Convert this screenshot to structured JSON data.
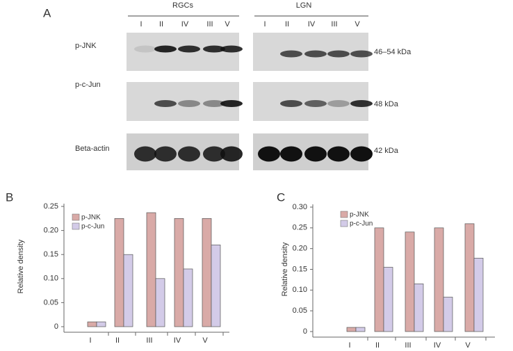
{
  "blot": {
    "panel_label": "A",
    "groups": [
      {
        "label": "RGCs",
        "lanes": [
          "I",
          "II",
          "IV",
          "III",
          "V"
        ]
      },
      {
        "label": "LGN",
        "lanes": [
          "I",
          "II",
          "IV",
          "III",
          "V"
        ]
      }
    ],
    "rows": [
      {
        "label": "p-JNK",
        "size": "46–54 kDa"
      },
      {
        "label": "p-c-Jun",
        "size": "48 kDa"
      },
      {
        "label": "Beta-actin",
        "size": "42 kDa"
      }
    ]
  },
  "chart_data": [
    {
      "type": "bar",
      "panel_label": "B",
      "ylabel": "Relative density",
      "categories": [
        "I",
        "II",
        "III",
        "IV",
        "V"
      ],
      "series": [
        {
          "name": "p-JNK",
          "color": "#d9aaa7",
          "values": [
            0.01,
            0.225,
            0.237,
            0.225,
            0.225
          ]
        },
        {
          "name": "p-c-Jun",
          "color": "#d3cbe8",
          "values": [
            0.01,
            0.15,
            0.1,
            0.12,
            0.17
          ]
        }
      ],
      "ylim": [
        0,
        0.25
      ],
      "yticks": [
        0,
        0.05,
        {
          "value": 0.1,
          "label": "0.10"
        },
        0.15,
        {
          "value": 0.2,
          "label": "0.20"
        },
        0.25
      ],
      "legend": "upper left"
    },
    {
      "type": "bar",
      "panel_label": "C",
      "ylabel": "Relative density",
      "categories": [
        "I",
        "II",
        "III",
        "IV",
        "V"
      ],
      "series": [
        {
          "name": "p-JNK",
          "color": "#d9aaa7",
          "values": [
            0.01,
            0.25,
            0.24,
            0.25,
            0.26
          ]
        },
        {
          "name": "p-c-Jun",
          "color": "#d3cbe8",
          "values": [
            0.01,
            0.155,
            0.115,
            0.083,
            0.177
          ]
        }
      ],
      "ylim": [
        0,
        0.3
      ],
      "yticks": [
        0,
        0.05,
        {
          "value": 0.1,
          "label": "0.10"
        },
        0.15,
        {
          "value": 0.2,
          "label": "0.20"
        },
        0.25,
        {
          "value": 0.3,
          "label": "0.30"
        }
      ],
      "legend": "upper left"
    }
  ]
}
